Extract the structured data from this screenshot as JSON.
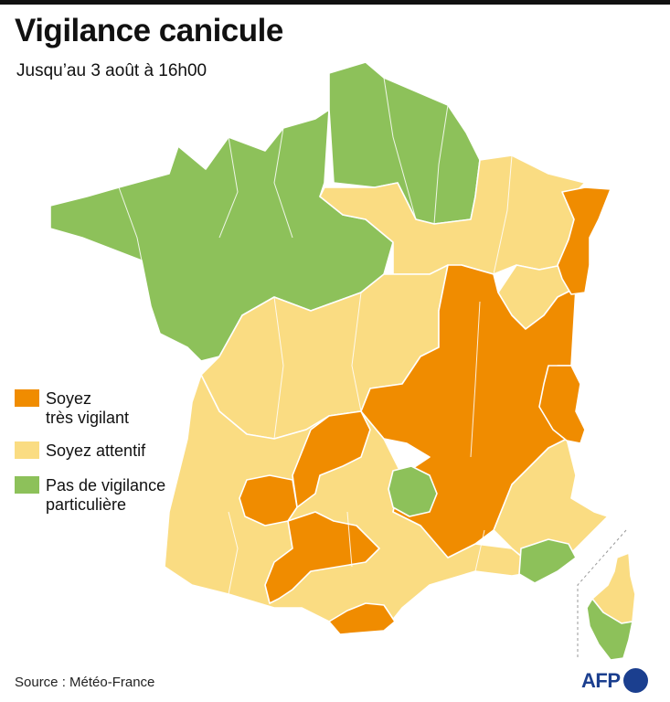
{
  "title": "Vigilance canicule",
  "subtitle": "Jusqu’au 3 août à 16h00",
  "colors": {
    "tres_vigilant": "#F08C00",
    "attentif": "#FADC82",
    "pas_de_vigilance": "#8DC15A",
    "border": "#ffffff"
  },
  "legend": [
    {
      "key": "tres_vigilant",
      "label": "Soyez\ntrès vigilant"
    },
    {
      "key": "attentif",
      "label": "Soyez attentif"
    },
    {
      "key": "pas_de_vigilance",
      "label": "Pas de vigilance\nparticulière"
    }
  ],
  "regions": [
    {
      "name": "nord-ouest",
      "level": "pas_de_vigilance"
    },
    {
      "name": "nord-est",
      "level": "pas_de_vigilance"
    },
    {
      "name": "centre-ouest",
      "level": "attentif"
    },
    {
      "name": "sud-ouest",
      "level": "attentif"
    },
    {
      "name": "nord-centre-est",
      "level": "attentif"
    },
    {
      "name": "est",
      "level": "attentif"
    },
    {
      "name": "sud-est",
      "level": "attentif"
    },
    {
      "name": "centre-est",
      "level": "tres_vigilant"
    },
    {
      "name": "alsace",
      "level": "tres_vigilant"
    },
    {
      "name": "alpes-nord",
      "level": "tres_vigilant"
    },
    {
      "name": "massif-central-ouest",
      "level": "tres_vigilant"
    },
    {
      "name": "gers-landes",
      "level": "tres_vigilant"
    },
    {
      "name": "ariege-aude",
      "level": "tres_vigilant"
    },
    {
      "name": "pyrenees-orientales",
      "level": "tres_vigilant"
    },
    {
      "name": "cantal",
      "level": "pas_de_vigilance"
    },
    {
      "name": "var-alpes-maritimes",
      "level": "pas_de_vigilance"
    },
    {
      "name": "corse-du-sud",
      "level": "pas_de_vigilance"
    },
    {
      "name": "haute-corse",
      "level": "attentif"
    }
  ],
  "source": "Source : Météo-France",
  "logo": "AFP"
}
